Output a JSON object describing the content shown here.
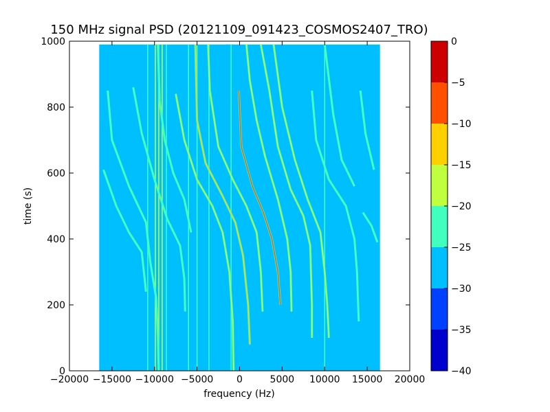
{
  "chart_data": {
    "type": "heatmap",
    "title": "150 MHz signal PSD (20121109_091423_COSMOS2407_TRO)",
    "xlabel": "frequency (Hz)",
    "ylabel": "time (s)",
    "xlim": [
      -20000,
      20000
    ],
    "ylim": [
      0,
      1000
    ],
    "x_ticks": [
      -20000,
      -15000,
      -10000,
      -5000,
      0,
      5000,
      10000,
      15000,
      20000
    ],
    "x_tick_labels": [
      "−20000",
      "−15000",
      "−10000",
      "−5000",
      "0",
      "5000",
      "10000",
      "15000",
      "20000"
    ],
    "y_ticks": [
      0,
      200,
      400,
      600,
      800,
      1000
    ],
    "y_tick_labels": [
      "0",
      "200",
      "400",
      "600",
      "800",
      "1000"
    ],
    "data_extent": {
      "freq": [
        -16500,
        16500
      ],
      "time": [
        0,
        990
      ]
    },
    "background_level": -27.5,
    "colorbar": {
      "levels": [
        -40,
        -35,
        -30,
        -25,
        -20,
        -15,
        -10,
        -5,
        0
      ],
      "tick_labels": [
        "−40",
        "−35",
        "−30",
        "−25",
        "−20",
        "−15",
        "−10",
        "−5",
        "0"
      ],
      "colors": [
        "#0000cc",
        "#0040ff",
        "#00bfff",
        "#40ffbf",
        "#bfff40",
        "#ffd000",
        "#ff5000",
        "#cc0000"
      ]
    },
    "vertical_lines": [
      {
        "freq": -10800,
        "t_start": 0,
        "t_end": 990,
        "level": -22
      },
      {
        "freq": -9900,
        "t_start": 0,
        "t_end": 990,
        "level": -18
      },
      {
        "freq": -9500,
        "t_start": 0,
        "t_end": 990,
        "level": -18
      },
      {
        "freq": -9100,
        "t_start": 0,
        "t_end": 990,
        "level": -18
      },
      {
        "freq": -8600,
        "t_start": 0,
        "t_end": 990,
        "level": -22
      },
      {
        "freq": -6000,
        "t_start": 0,
        "t_end": 990,
        "level": -22
      },
      {
        "freq": -5000,
        "t_start": 0,
        "t_end": 990,
        "level": -22
      },
      {
        "freq": -3600,
        "t_start": 0,
        "t_end": 990,
        "level": -22
      },
      {
        "freq": -1000,
        "t_start": 0,
        "t_end": 990,
        "level": -22
      },
      {
        "freq": 10000,
        "t_start": 0,
        "t_end": 990,
        "level": -22
      }
    ],
    "drift_traces": [
      {
        "points": [
          [
            -15500,
            850
          ],
          [
            -15000,
            700
          ],
          [
            -13000,
            560
          ],
          [
            -11000,
            450
          ],
          [
            -10500,
            330
          ],
          [
            -9800,
            220
          ],
          [
            -9600,
            100
          ],
          [
            -9500,
            0
          ]
        ],
        "level": -22
      },
      {
        "points": [
          [
            -16000,
            610
          ],
          [
            -14500,
            500
          ],
          [
            -13000,
            420
          ],
          [
            -11500,
            360
          ],
          [
            -11000,
            240
          ]
        ],
        "level": -22
      },
      {
        "points": [
          [
            -12500,
            860
          ],
          [
            -11500,
            720
          ],
          [
            -10000,
            580
          ],
          [
            -8500,
            460
          ],
          [
            -7000,
            380
          ],
          [
            -6500,
            280
          ],
          [
            -6400,
            180
          ]
        ],
        "level": -22
      },
      {
        "points": [
          [
            -9600,
            990
          ],
          [
            -9400,
            820
          ],
          [
            -8800,
            700
          ],
          [
            -7800,
            600
          ],
          [
            -6500,
            520
          ],
          [
            -5700,
            420
          ]
        ],
        "level": -22
      },
      {
        "points": [
          [
            -7500,
            840
          ],
          [
            -6500,
            700
          ],
          [
            -5000,
            580
          ],
          [
            -3200,
            500
          ],
          [
            -2000,
            420
          ],
          [
            -1200,
            300
          ],
          [
            -800,
            150
          ],
          [
            -700,
            0
          ]
        ],
        "level": -18
      },
      {
        "points": [
          [
            -5200,
            990
          ],
          [
            -5000,
            760
          ],
          [
            -4000,
            630
          ],
          [
            -2000,
            530
          ],
          [
            -500,
            450
          ],
          [
            400,
            350
          ],
          [
            1000,
            200
          ],
          [
            1200,
            80
          ]
        ],
        "level": -12
      },
      {
        "points": [
          [
            -3700,
            990
          ],
          [
            -3500,
            850
          ],
          [
            -2500,
            680
          ],
          [
            -800,
            580
          ],
          [
            800,
            500
          ],
          [
            2000,
            420
          ],
          [
            2500,
            300
          ],
          [
            2700,
            180
          ]
        ],
        "level": -18
      },
      {
        "points": [
          [
            -100,
            850
          ],
          [
            200,
            680
          ],
          [
            1500,
            560
          ],
          [
            2800,
            480
          ],
          [
            3800,
            400
          ],
          [
            4500,
            300
          ],
          [
            4800,
            200
          ]
        ],
        "level": -7
      },
      {
        "points": [
          [
            800,
            990
          ],
          [
            1200,
            880
          ],
          [
            2000,
            760
          ],
          [
            3000,
            650
          ],
          [
            4500,
            520
          ],
          [
            5600,
            400
          ],
          [
            6000,
            300
          ],
          [
            6100,
            180
          ]
        ],
        "level": -18
      },
      {
        "points": [
          [
            2500,
            990
          ],
          [
            3500,
            850
          ],
          [
            4500,
            680
          ],
          [
            6000,
            550
          ],
          [
            7500,
            470
          ],
          [
            8300,
            380
          ],
          [
            8500,
            200
          ],
          [
            8500,
            100
          ]
        ],
        "level": -18
      },
      {
        "points": [
          [
            4000,
            990
          ],
          [
            5000,
            800
          ],
          [
            6500,
            640
          ],
          [
            8000,
            520
          ],
          [
            9500,
            420
          ],
          [
            10000,
            300
          ],
          [
            10300,
            200
          ],
          [
            10500,
            100
          ]
        ],
        "level": -18
      },
      {
        "points": [
          [
            8500,
            850
          ],
          [
            9000,
            700
          ],
          [
            10500,
            580
          ],
          [
            12500,
            500
          ],
          [
            13500,
            400
          ],
          [
            13800,
            300
          ],
          [
            14000,
            150
          ]
        ],
        "level": -22
      },
      {
        "points": [
          [
            10000,
            990
          ],
          [
            11000,
            780
          ],
          [
            12000,
            640
          ],
          [
            13500,
            560
          ]
        ],
        "level": -22
      },
      {
        "points": [
          [
            14200,
            850
          ],
          [
            14800,
            720
          ],
          [
            15800,
            610
          ]
        ],
        "level": -22
      },
      {
        "points": [
          [
            14500,
            480
          ],
          [
            15500,
            440
          ],
          [
            16200,
            390
          ]
        ],
        "level": -22
      }
    ],
    "noise_band": {
      "freq_center": 0,
      "freq_halfwidth": 4500,
      "t_start": 0,
      "t_end": 990,
      "level": -25
    },
    "grid": false,
    "legend": "colorbar-right"
  }
}
